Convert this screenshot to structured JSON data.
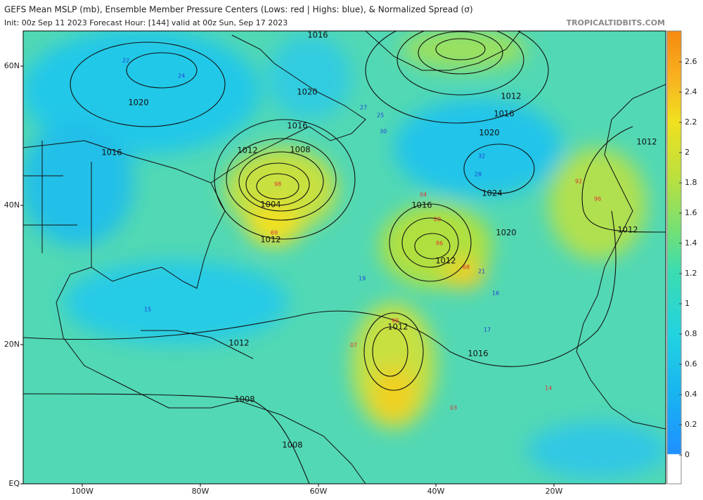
{
  "header": {
    "title": "GEFS Mean MSLP (mb), Ensemble Member Pressure Centers (Lows: red | Highs: blue), & Normalized Spread (σ)",
    "subtitle": "Init: 00z Sep 11 2023   Forecast Hour: [144]   valid at 00z Sun, Sep 17 2023",
    "brand": "TROPICALTIDBITS.COM"
  },
  "axes": {
    "lat_labels": [
      "60N",
      "40N",
      "20N",
      "EQ"
    ],
    "lon_labels": [
      "100W",
      "80W",
      "60W",
      "40W",
      "20W"
    ]
  },
  "colorbar": {
    "ticks": [
      "2.6",
      "2.4",
      "2.2",
      "2",
      "1.8",
      "1.6",
      "1.4",
      "1.2",
      "1",
      "0.8",
      "0.6",
      "0.4",
      "0.2",
      "0"
    ]
  },
  "isobar_labels": [
    "1016",
    "1020",
    "1020",
    "1016",
    "1016",
    "1012",
    "1008",
    "1004",
    "1012",
    "1012",
    "1016",
    "1020",
    "1024",
    "1016",
    "1020",
    "1012",
    "1012",
    "1016",
    "1012",
    "1008",
    "1008",
    "1012",
    "1012"
  ],
  "member_labels": {
    "lows": [
      "98",
      "04",
      "00",
      "69",
      "96",
      "86",
      "99",
      "92",
      "03",
      "88",
      "14",
      "07"
    ],
    "highs": [
      "22",
      "24",
      "27",
      "25",
      "30",
      "28",
      "32",
      "15",
      "17",
      "16",
      "21",
      "19"
    ]
  }
}
